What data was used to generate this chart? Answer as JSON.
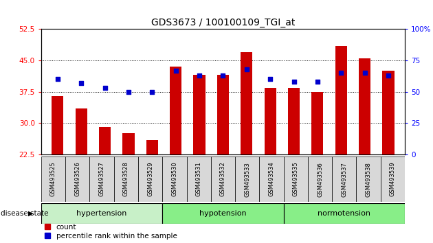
{
  "title": "GDS3673 / 100100109_TGI_at",
  "samples": [
    "GSM493525",
    "GSM493526",
    "GSM493527",
    "GSM493528",
    "GSM493529",
    "GSM493530",
    "GSM493531",
    "GSM493532",
    "GSM493533",
    "GSM493534",
    "GSM493535",
    "GSM493536",
    "GSM493537",
    "GSM493538",
    "GSM493539"
  ],
  "count_values": [
    36.5,
    33.5,
    29.0,
    27.5,
    26.0,
    43.5,
    41.5,
    41.5,
    47.0,
    38.5,
    38.5,
    37.5,
    48.5,
    45.5,
    42.5
  ],
  "percentile_values": [
    60,
    57,
    53,
    50,
    50,
    67,
    63,
    63,
    68,
    60,
    58,
    58,
    65,
    65,
    63
  ],
  "ylim_left": [
    22.5,
    52.5
  ],
  "ylim_right": [
    0,
    100
  ],
  "yticks_left": [
    22.5,
    30,
    37.5,
    45,
    52.5
  ],
  "yticks_right": [
    0,
    25,
    50,
    75,
    100
  ],
  "bar_color": "#cc0000",
  "dot_color": "#0000cc",
  "bar_width": 0.5,
  "group_labels": [
    "hypertension",
    "hypotension",
    "normotension"
  ],
  "group_ranges": [
    [
      0,
      5
    ],
    [
      5,
      10
    ],
    [
      10,
      15
    ]
  ],
  "group_colors": [
    "#c8f0c8",
    "#88ee88",
    "#88ee88"
  ],
  "disease_state_label": "disease state",
  "legend_count": "count",
  "legend_pct": "percentile rank within the sample"
}
